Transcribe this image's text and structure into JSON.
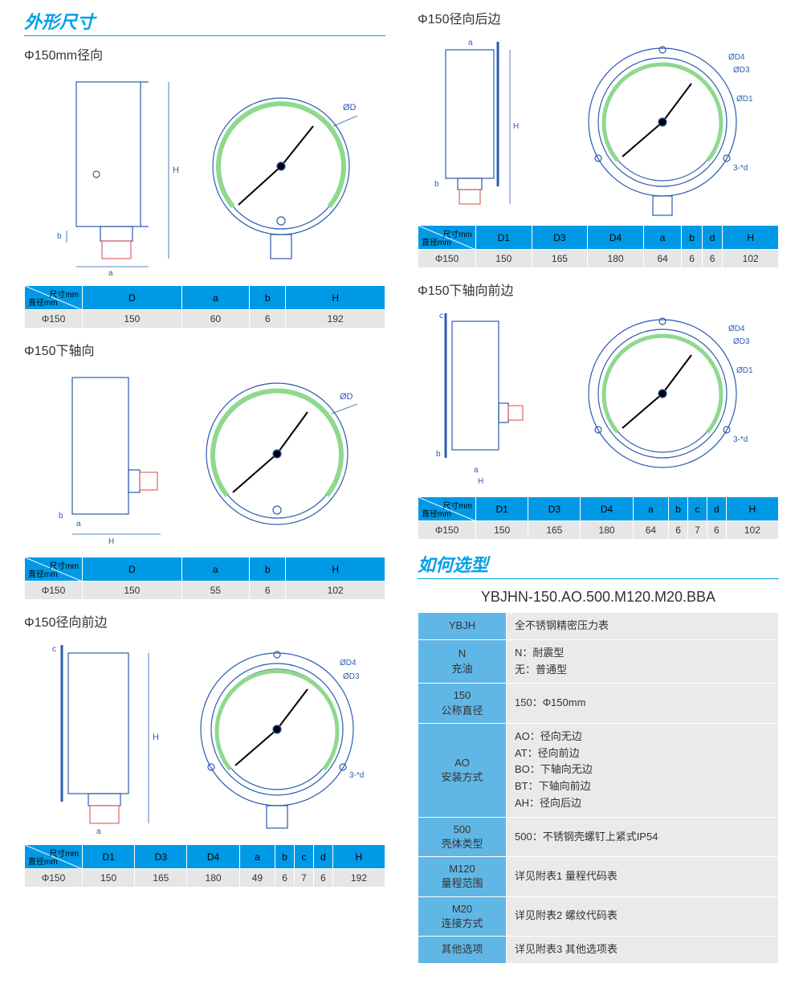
{
  "colors": {
    "accent": "#00a0e9",
    "table_header_bg": "#0099e5",
    "table_row_bg": "#e6e6e6",
    "sel_key_bg": "#60b7e6",
    "sel_val_bg": "#eaeaea",
    "diagram_stroke": "#2a5cad",
    "diagram_green": "#8fd98e",
    "diagram_red": "#e06666"
  },
  "header1": "外形尺寸",
  "header2": "如何选型",
  "corner_top": "尺寸mm",
  "corner_left": "直径mm",
  "sections": {
    "A": {
      "title": "Φ150mm径向",
      "headers": [
        "D",
        "a",
        "b",
        "H"
      ],
      "row_label": "Φ150",
      "row": [
        "150",
        "60",
        "6",
        "192"
      ]
    },
    "B": {
      "title": "Φ150下轴向",
      "headers": [
        "D",
        "a",
        "b",
        "H"
      ],
      "row_label": "Φ150",
      "row": [
        "150",
        "55",
        "6",
        "102"
      ]
    },
    "C": {
      "title": "Φ150径向前边",
      "headers": [
        "D1",
        "D3",
        "D4",
        "a",
        "b",
        "c",
        "d",
        "H"
      ],
      "row_label": "Φ150",
      "row": [
        "150",
        "165",
        "180",
        "49",
        "6",
        "7",
        "6",
        "192"
      ]
    },
    "D": {
      "title": "Φ150径向后边",
      "headers": [
        "D1",
        "D3",
        "D4",
        "a",
        "b",
        "d",
        "H"
      ],
      "row_label": "Φ150",
      "row": [
        "150",
        "165",
        "180",
        "64",
        "6",
        "6",
        "102"
      ]
    },
    "E": {
      "title": "Φ150下轴向前边",
      "headers": [
        "D1",
        "D3",
        "D4",
        "a",
        "b",
        "c",
        "d",
        "H"
      ],
      "row_label": "Φ150",
      "row": [
        "150",
        "165",
        "180",
        "64",
        "6",
        "7",
        "6",
        "102"
      ]
    }
  },
  "model_code": "YBJHN-150.AO.500.M120.M20.BBA",
  "selection": [
    {
      "k": "YBJH",
      "v": "全不锈钢精密压力表"
    },
    {
      "k": "N\n充油",
      "v": "N：耐震型\n无：普通型"
    },
    {
      "k": "150\n公称直径",
      "v": "150：Φ150mm"
    },
    {
      "k": "AO\n安装方式",
      "v": "AO：径向无边\nAT：径向前边\nBO：下轴向无边\nBT：下轴向前边\nAH：径向后边"
    },
    {
      "k": "500\n壳体类型",
      "v": "500：不锈钢壳螺钉上紧式IP54"
    },
    {
      "k": "M120\n量程范围",
      "v": "详见附表1  量程代码表"
    },
    {
      "k": "M20\n连接方式",
      "v": "详见附表2  螺纹代码表"
    },
    {
      "k": "其他选项",
      "v": "详见附表3  其他选项表"
    }
  ],
  "diagram_labels": {
    "phiD": "ØD",
    "phiD1": "ØD1",
    "phiD3": "ØD3",
    "phiD4": "ØD4",
    "H": "H",
    "a": "a",
    "b": "b",
    "c": "c",
    "holes": "3-*d"
  }
}
